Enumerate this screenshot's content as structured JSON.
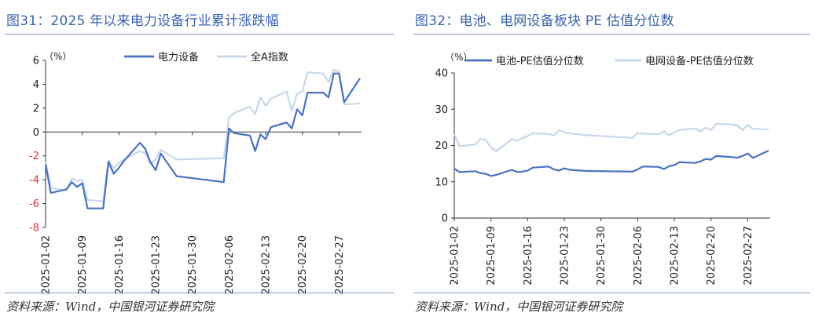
{
  "panels": [
    {
      "title": "图31：2025 年以来电力设备行业累计涨跌幅",
      "source": "资料来源：Wind，中国银河证券研究院",
      "chart_data": {
        "type": "line",
        "unit_label": "（%）",
        "ylim": [
          -8,
          6
        ],
        "yticks": [
          6,
          4,
          2,
          0,
          -2,
          -4,
          -6,
          -8
        ],
        "negative_tick_color": "#e0303a",
        "x_tick_labels": [
          "2025-01-02",
          "2025-01-09",
          "2025-01-16",
          "2025-01-23",
          "2025-01-30",
          "2025-02-06",
          "2025-02-13",
          "2025-02-20",
          "2025-02-27"
        ],
        "legend_position": "top",
        "grid": false,
        "series": [
          {
            "name": "电力设备",
            "color": "#4a72c0",
            "x": [
              "2025-01-02",
              "2025-01-03",
              "2025-01-06",
              "2025-01-07",
              "2025-01-08",
              "2025-01-09",
              "2025-01-10",
              "2025-01-13",
              "2025-01-14",
              "2025-01-15",
              "2025-01-16",
              "2025-01-17",
              "2025-01-20",
              "2025-01-21",
              "2025-01-22",
              "2025-01-23",
              "2025-01-24",
              "2025-01-27",
              "2025-02-05",
              "2025-02-06",
              "2025-02-07",
              "2025-02-10",
              "2025-02-11",
              "2025-02-12",
              "2025-02-13",
              "2025-02-14",
              "2025-02-17",
              "2025-02-18",
              "2025-02-19",
              "2025-02-20",
              "2025-02-21",
              "2025-02-24",
              "2025-02-25",
              "2025-02-26",
              "2025-02-27",
              "2025-02-28",
              "2025-03-03"
            ],
            "values": [
              -2.7,
              -5.1,
              -4.8,
              -4.2,
              -4.6,
              -4.3,
              -6.4,
              -6.4,
              -2.5,
              -3.5,
              -3.0,
              -2.4,
              -0.9,
              -1.4,
              -2.5,
              -3.2,
              -1.8,
              -3.7,
              -4.2,
              0.3,
              -0.1,
              -0.3,
              -1.6,
              -0.2,
              -0.6,
              0.4,
              0.8,
              0.3,
              1.9,
              1.4,
              3.3,
              3.3,
              2.9,
              4.9,
              4.9,
              2.5,
              4.5
            ]
          },
          {
            "name": "全A指数",
            "color": "#c8d6ed",
            "x": [
              "2025-01-02",
              "2025-01-03",
              "2025-01-06",
              "2025-01-07",
              "2025-01-08",
              "2025-01-09",
              "2025-01-10",
              "2025-01-13",
              "2025-01-14",
              "2025-01-15",
              "2025-01-16",
              "2025-01-17",
              "2025-01-20",
              "2025-01-21",
              "2025-01-22",
              "2025-01-23",
              "2025-01-24",
              "2025-01-27",
              "2025-02-05",
              "2025-02-06",
              "2025-02-07",
              "2025-02-10",
              "2025-02-11",
              "2025-02-12",
              "2025-02-13",
              "2025-02-14",
              "2025-02-17",
              "2025-02-18",
              "2025-02-19",
              "2025-02-20",
              "2025-02-21",
              "2025-02-24",
              "2025-02-25",
              "2025-02-26",
              "2025-02-27",
              "2025-02-28",
              "2025-03-03"
            ],
            "values": [
              -2.5,
              -4.7,
              -4.9,
              -3.9,
              -4.1,
              -4.0,
              -5.7,
              -5.8,
              -2.4,
              -3.0,
              -2.6,
              -2.3,
              -1.6,
              -1.8,
              -2.7,
              -2.3,
              -1.5,
              -2.3,
              -2.2,
              1.2,
              1.6,
              2.1,
              1.5,
              2.9,
              2.2,
              2.8,
              3.4,
              1.8,
              3.2,
              3.4,
              5.0,
              4.9,
              4.2,
              5.2,
              5.1,
              2.3,
              2.4
            ]
          }
        ]
      }
    },
    {
      "title": "图32：电池、电网设备板块 PE 估值分位数",
      "source": "资料来源：Wind，中国银河证券研究院",
      "chart_data": {
        "type": "line",
        "unit_label": "（%）",
        "ylim": [
          0,
          40
        ],
        "yticks": [
          40,
          30,
          20,
          10,
          0
        ],
        "x_tick_labels": [
          "2025-01-02",
          "2025-01-09",
          "2025-01-16",
          "2025-01-23",
          "2025-01-30",
          "2025-02-06",
          "2025-02-13",
          "2025-02-20",
          "2025-02-27"
        ],
        "legend_position": "top",
        "grid": false,
        "series": [
          {
            "name": "电池-PE估值分位数",
            "color": "#4a72c0",
            "x": [
              "2025-01-02",
              "2025-01-03",
              "2025-01-06",
              "2025-01-07",
              "2025-01-08",
              "2025-01-09",
              "2025-01-10",
              "2025-01-13",
              "2025-01-14",
              "2025-01-15",
              "2025-01-16",
              "2025-01-17",
              "2025-01-20",
              "2025-01-21",
              "2025-01-22",
              "2025-01-23",
              "2025-01-24",
              "2025-01-27",
              "2025-02-05",
              "2025-02-06",
              "2025-02-07",
              "2025-02-10",
              "2025-02-11",
              "2025-02-12",
              "2025-02-13",
              "2025-02-14",
              "2025-02-17",
              "2025-02-18",
              "2025-02-19",
              "2025-02-20",
              "2025-02-21",
              "2025-02-24",
              "2025-02-25",
              "2025-02-26",
              "2025-02-27",
              "2025-02-28",
              "2025-03-03"
            ],
            "values": [
              13.6,
              12.7,
              12.9,
              12.4,
              12.2,
              11.6,
              11.9,
              13.3,
              12.7,
              12.8,
              13.1,
              13.9,
              14.2,
              13.4,
              13.1,
              13.7,
              13.3,
              13.0,
              12.8,
              13.4,
              14.2,
              14.1,
              13.5,
              14.3,
              14.6,
              15.4,
              15.2,
              15.6,
              16.3,
              16.1,
              17.1,
              16.8,
              16.6,
              17.1,
              17.8,
              16.6,
              18.6
            ]
          },
          {
            "name": "电网设备-PE估值分位数",
            "color": "#c8d6ed",
            "x": [
              "2025-01-02",
              "2025-01-03",
              "2025-01-06",
              "2025-01-07",
              "2025-01-08",
              "2025-01-09",
              "2025-01-10",
              "2025-01-13",
              "2025-01-14",
              "2025-01-15",
              "2025-01-16",
              "2025-01-17",
              "2025-01-20",
              "2025-01-21",
              "2025-01-22",
              "2025-01-23",
              "2025-01-24",
              "2025-01-27",
              "2025-02-05",
              "2025-02-06",
              "2025-02-07",
              "2025-02-10",
              "2025-02-11",
              "2025-02-12",
              "2025-02-13",
              "2025-02-14",
              "2025-02-17",
              "2025-02-18",
              "2025-02-19",
              "2025-02-20",
              "2025-02-21",
              "2025-02-24",
              "2025-02-25",
              "2025-02-26",
              "2025-02-27",
              "2025-02-28",
              "2025-03-03"
            ],
            "values": [
              23.1,
              19.8,
              20.3,
              21.8,
              21.5,
              19.5,
              18.4,
              21.7,
              21.3,
              22.0,
              22.6,
              23.4,
              23.2,
              22.8,
              24.2,
              23.7,
              23.3,
              22.9,
              22.1,
              23.4,
              23.3,
              23.1,
              23.9,
              22.8,
              23.6,
              24.3,
              24.7,
              23.8,
              24.9,
              24.3,
              26.0,
              25.8,
              25.6,
              24.2,
              25.7,
              24.6,
              24.4
            ]
          }
        ]
      }
    }
  ]
}
